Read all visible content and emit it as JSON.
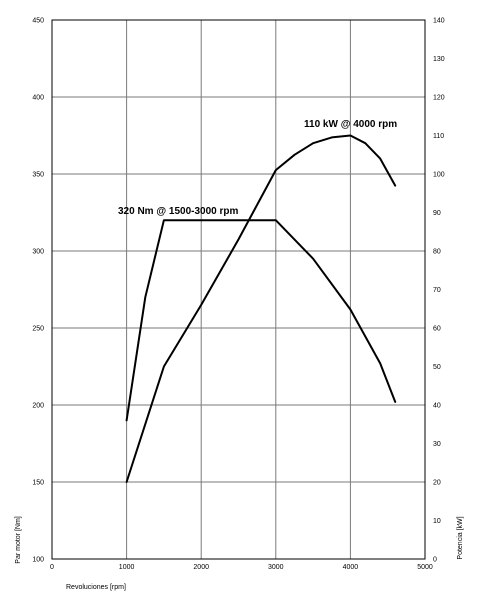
{
  "chart_data": {
    "type": "line",
    "xlabel": "Revoluciones [rpm]",
    "ylabel_left": "Par motor [Nm]",
    "ylabel_right": "Potencia [kW]",
    "xlim": [
      0,
      5000
    ],
    "ylim_left": [
      100,
      450
    ],
    "ylim_right": [
      0,
      140
    ],
    "x_ticks": [
      "0",
      "1000",
      "2000",
      "3000",
      "4000",
      "5000"
    ],
    "y_left_ticks": [
      "100",
      "150",
      "200",
      "250",
      "300",
      "350",
      "400",
      "450"
    ],
    "y_right_ticks": [
      "0",
      "10",
      "20",
      "30",
      "40",
      "50",
      "60",
      "70",
      "80",
      "90",
      "100",
      "110",
      "120",
      "130",
      "140"
    ],
    "grid": true,
    "series": [
      {
        "axis": "left",
        "x": [
          1000,
          1250,
          1500,
          3000,
          3500,
          4000,
          4400,
          4600
        ],
        "y": [
          190,
          270,
          320,
          320,
          295,
          262,
          227,
          202
        ]
      },
      {
        "axis": "right",
        "x": [
          1000,
          1500,
          2000,
          2500,
          3000,
          3250,
          3500,
          3750,
          4000,
          4200,
          4400,
          4600
        ],
        "y": [
          20,
          50,
          66,
          83,
          101,
          105,
          108,
          109.5,
          110,
          108,
          104,
          97
        ]
      }
    ],
    "annotations": [
      {
        "text": "320 Nm @ 1500-3000 rpm",
        "x": 1500,
        "y": 320,
        "axis": "left"
      },
      {
        "text": "110 kW @ 4000 rpm",
        "x": 4000,
        "y": 110,
        "axis": "right"
      }
    ]
  }
}
